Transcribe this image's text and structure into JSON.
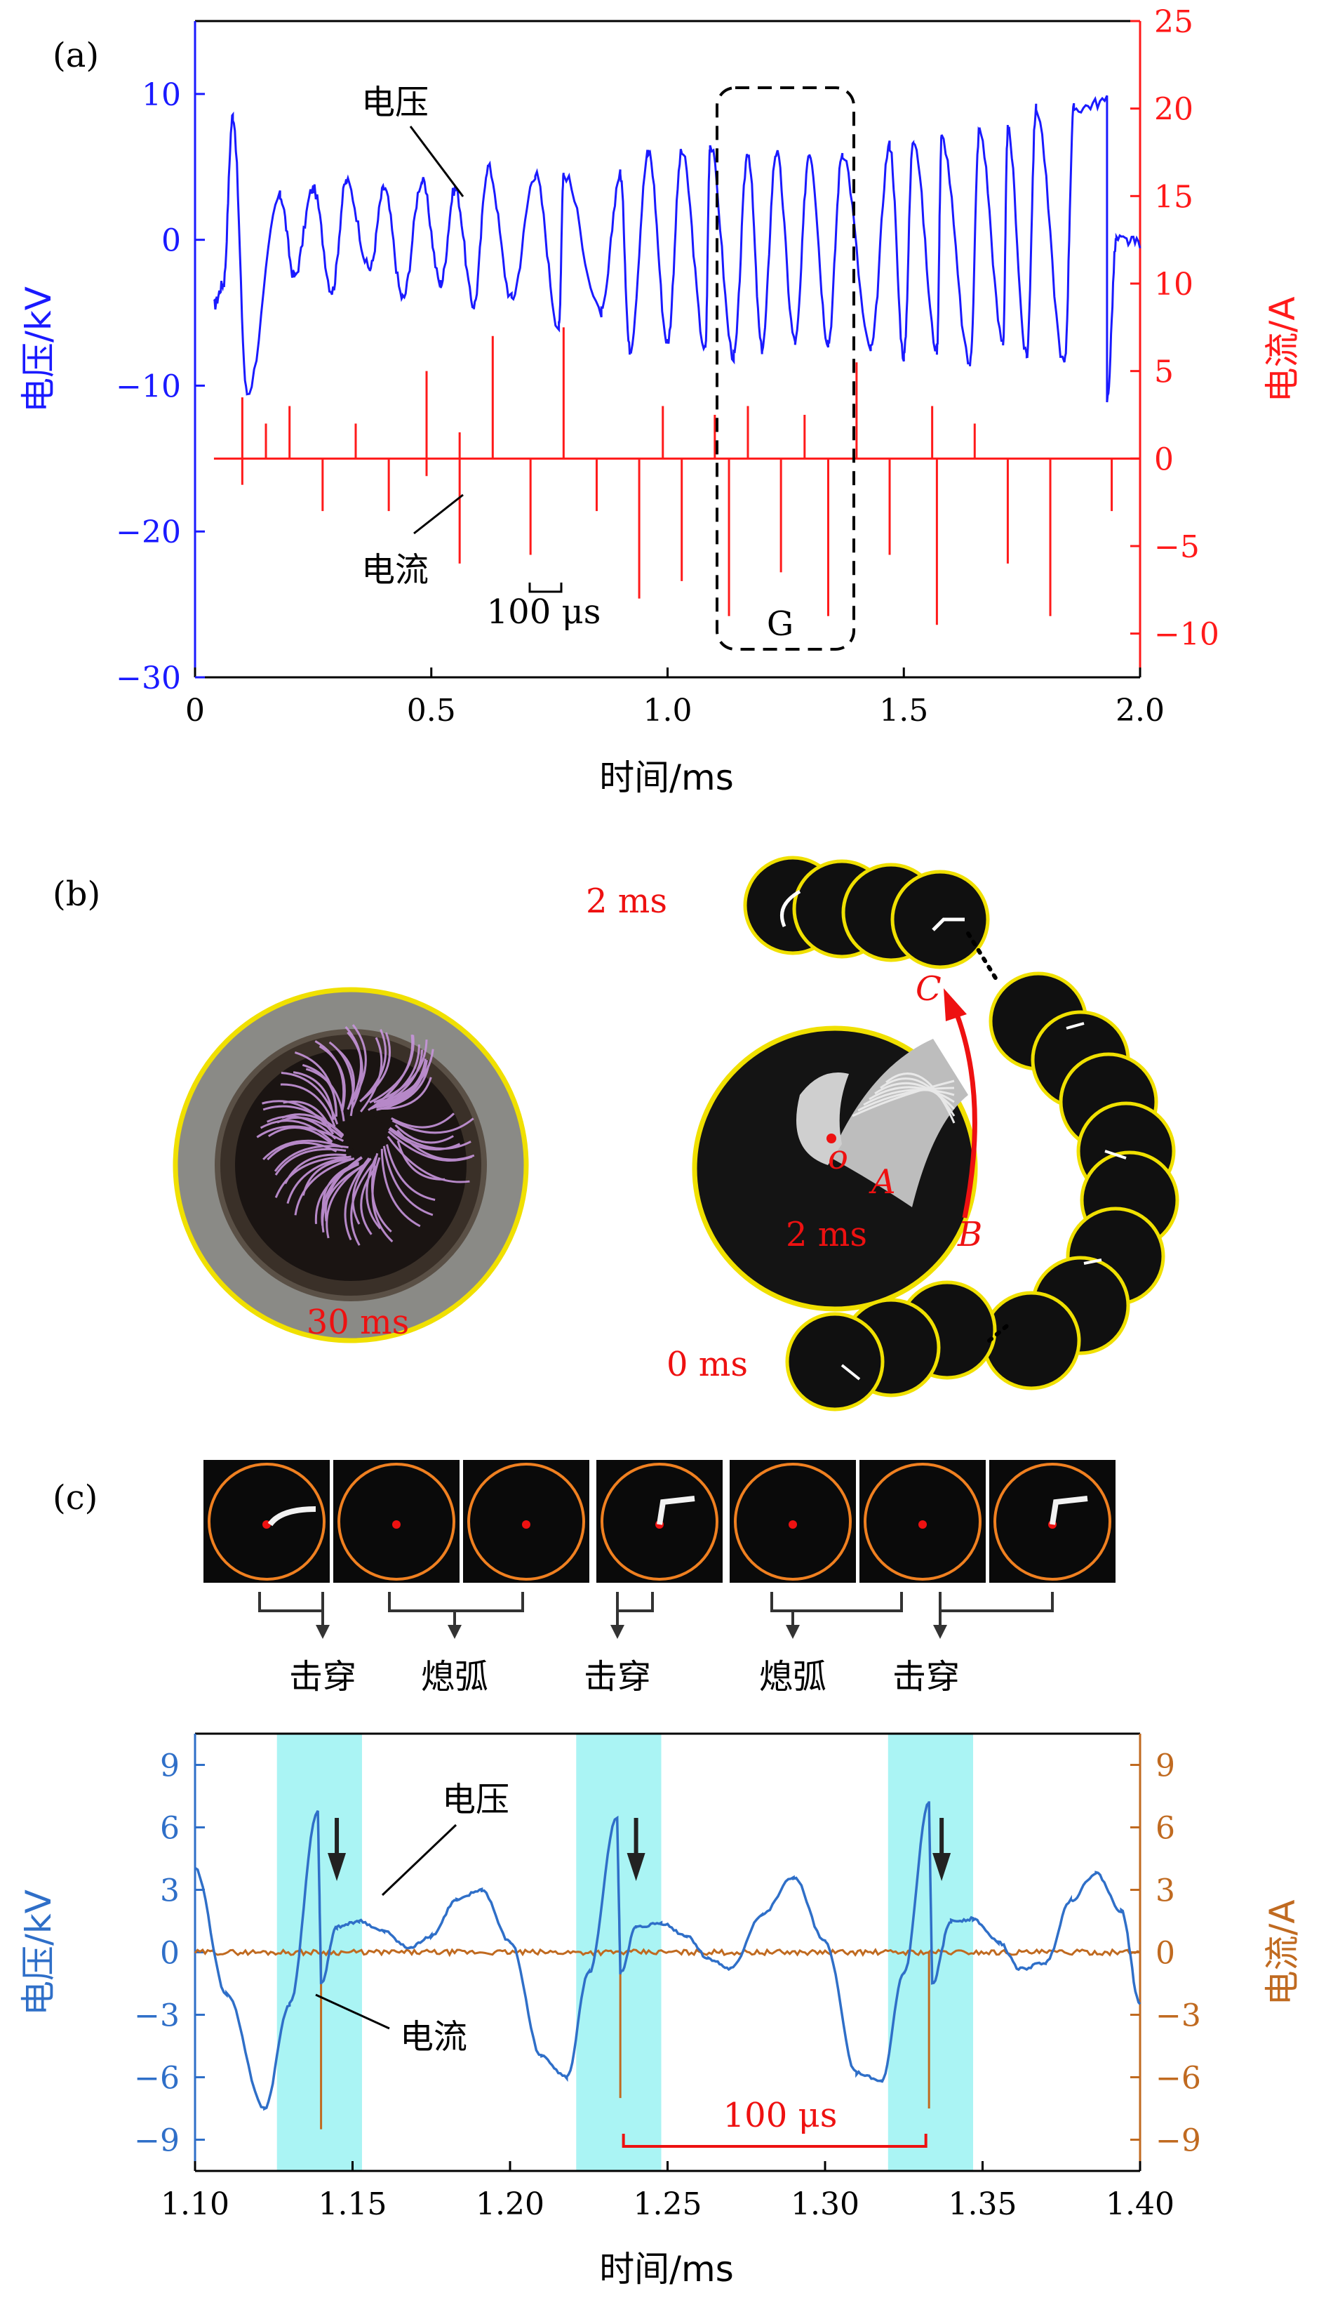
{
  "panels": {
    "a": {
      "label": "(a)"
    },
    "b": {
      "label": "(b)"
    },
    "c": {
      "label": "(c)"
    }
  },
  "panel_a": {
    "annotations": {
      "voltage": "电压",
      "current": "电流",
      "scale": "100 μs",
      "group": "G"
    },
    "colors": {
      "voltage": "#1a1aff",
      "current": "#ff1a1a"
    }
  },
  "panel_b": {
    "photo_time": "30 ms",
    "center_time": "2 ms",
    "seq_start": "0 ms",
    "seq_end": "2 ms",
    "point_o": "o",
    "point_a": "A",
    "point_b": "B",
    "point_c": "C",
    "colors": {
      "ring": "#f0e000",
      "label": "#ee1111",
      "discharge": "#c08ad8"
    }
  },
  "panel_c": {
    "events": [
      "击穿",
      "熄弧",
      "击穿",
      "熄弧",
      "击穿"
    ],
    "annotations": {
      "voltage": "电压",
      "current": "电流",
      "interval": "100 μs"
    },
    "colors": {
      "voltage": "#2f6fc8",
      "current": "#c06a20",
      "highlight": "#aaf4f4",
      "ring": "#f08020"
    }
  },
  "chart_data": [
    {
      "type": "line",
      "panel": "a",
      "xlabel": "时间/ms",
      "ylabel": "电压/kV",
      "y2label": "电流/A",
      "xlim": [
        0,
        2.0
      ],
      "ylim": [
        -30,
        15
      ],
      "y2lim": [
        -12.5,
        25
      ],
      "xticks": [
        "0",
        "0.5",
        "1.0",
        "1.5",
        "2.0"
      ],
      "xtick_values": [
        0,
        0.5,
        1.0,
        1.5,
        2.0
      ],
      "yticks": [
        "10",
        "0",
        "−10",
        "−20",
        "−30"
      ],
      "ytick_values": [
        10,
        0,
        -10,
        -20,
        -30
      ],
      "y2ticks": [
        "25",
        "20",
        "15",
        "10",
        "5",
        "0",
        "−5",
        "−10"
      ],
      "y2tick_values": [
        25,
        20,
        15,
        10,
        5,
        0,
        -5,
        -10
      ],
      "voltage_peaks_kV": [
        [
          0.08,
          8.5
        ],
        [
          0.18,
          3.0
        ],
        [
          0.25,
          3.5
        ],
        [
          0.32,
          4.0
        ],
        [
          0.4,
          3.5
        ],
        [
          0.48,
          4.0
        ],
        [
          0.55,
          3.5
        ],
        [
          0.62,
          5.0
        ],
        [
          0.72,
          4.5
        ],
        [
          0.78,
          4.5
        ],
        [
          0.9,
          4.5
        ],
        [
          0.96,
          6.0
        ],
        [
          1.03,
          6.0
        ],
        [
          1.09,
          6.5
        ],
        [
          1.17,
          6.0
        ],
        [
          1.23,
          6.0
        ],
        [
          1.3,
          6.0
        ],
        [
          1.37,
          6.0
        ],
        [
          1.47,
          6.5
        ],
        [
          1.52,
          7.0
        ],
        [
          1.58,
          7.0
        ],
        [
          1.66,
          7.5
        ],
        [
          1.72,
          7.5
        ],
        [
          1.78,
          9.0
        ],
        [
          1.86,
          9.0
        ],
        [
          1.93,
          9.5
        ]
      ],
      "voltage_troughs_kV": [
        [
          0.11,
          -10.5
        ],
        [
          0.21,
          -2.5
        ],
        [
          0.29,
          -3.5
        ],
        [
          0.37,
          -2.0
        ],
        [
          0.44,
          -4.0
        ],
        [
          0.52,
          -3.0
        ],
        [
          0.59,
          -4.5
        ],
        [
          0.67,
          -4.0
        ],
        [
          0.77,
          -6.0
        ],
        [
          0.86,
          -5.0
        ],
        [
          0.92,
          -7.5
        ],
        [
          1.0,
          -7.0
        ],
        [
          1.08,
          -7.5
        ],
        [
          1.14,
          -8.0
        ],
        [
          1.2,
          -7.5
        ],
        [
          1.27,
          -7.0
        ],
        [
          1.34,
          -7.0
        ],
        [
          1.43,
          -7.5
        ],
        [
          1.5,
          -8.0
        ],
        [
          1.57,
          -7.5
        ],
        [
          1.64,
          -8.5
        ],
        [
          1.71,
          -7.0
        ],
        [
          1.76,
          -8.0
        ],
        [
          1.84,
          -8.5
        ],
        [
          1.93,
          -11.0
        ]
      ],
      "current_spikes_A": [
        [
          0.1,
          3.5
        ],
        [
          0.1,
          -1.5
        ],
        [
          0.15,
          2.0
        ],
        [
          0.2,
          3.0
        ],
        [
          0.27,
          -3.0
        ],
        [
          0.34,
          2.0
        ],
        [
          0.41,
          -3.0
        ],
        [
          0.49,
          5.0
        ],
        [
          0.49,
          -1.0
        ],
        [
          0.56,
          1.5
        ],
        [
          0.56,
          -6.0
        ],
        [
          0.63,
          7.0
        ],
        [
          0.71,
          -5.5
        ],
        [
          0.78,
          7.5
        ],
        [
          0.85,
          -3.0
        ],
        [
          0.94,
          -8.0
        ],
        [
          0.99,
          3.0
        ],
        [
          1.03,
          -7.0
        ],
        [
          1.1,
          2.5
        ],
        [
          1.13,
          -9.0
        ],
        [
          1.17,
          3.0
        ],
        [
          1.24,
          -6.5
        ],
        [
          1.29,
          2.5
        ],
        [
          1.34,
          -9.0
        ],
        [
          1.4,
          5.5
        ],
        [
          1.47,
          -5.5
        ],
        [
          1.56,
          3.0
        ],
        [
          1.57,
          -9.5
        ],
        [
          1.65,
          2.0
        ],
        [
          1.72,
          -6.0
        ],
        [
          1.81,
          -9.0
        ],
        [
          1.94,
          -3.0
        ]
      ]
    },
    {
      "type": "line",
      "panel": "c",
      "xlabel": "时间/ms",
      "ylabel": "电压/kV",
      "y2label": "电流/A",
      "xlim": [
        1.1,
        1.4
      ],
      "ylim": [
        -10.5,
        10.5
      ],
      "y2lim": [
        -10.5,
        10.5
      ],
      "xticks": [
        "1.10",
        "1.15",
        "1.20",
        "1.25",
        "1.30",
        "1.35",
        "1.40"
      ],
      "xtick_values": [
        1.1,
        1.15,
        1.2,
        1.25,
        1.3,
        1.35,
        1.4
      ],
      "yticks": [
        "9",
        "6",
        "3",
        "0",
        "−3",
        "−6",
        "−9"
      ],
      "ytick_values": [
        9,
        6,
        3,
        0,
        -3,
        -6,
        -9
      ],
      "highlight_ranges_ms": [
        [
          1.126,
          1.153
        ],
        [
          1.221,
          1.248
        ],
        [
          1.32,
          1.347
        ]
      ],
      "voltage_kV": {
        "x": [
          1.1,
          1.11,
          1.122,
          1.13,
          1.139,
          1.14,
          1.145,
          1.152,
          1.16,
          1.168,
          1.175,
          1.183,
          1.191,
          1.2,
          1.21,
          1.218,
          1.225,
          1.234,
          1.235,
          1.24,
          1.248,
          1.256,
          1.263,
          1.27,
          1.28,
          1.29,
          1.3,
          1.31,
          1.318,
          1.325,
          1.333,
          1.334,
          1.34,
          1.347,
          1.355,
          1.362,
          1.37,
          1.378,
          1.386,
          1.394,
          1.4
        ],
        "y": [
          4.0,
          -2.0,
          -7.5,
          -2.5,
          6.8,
          -1.5,
          1.2,
          1.5,
          1.0,
          0.2,
          0.8,
          2.5,
          3.0,
          0.5,
          -5.0,
          -6.0,
          -1.0,
          6.5,
          -1.0,
          1.2,
          1.4,
          0.8,
          -0.3,
          -0.8,
          1.8,
          3.6,
          0.5,
          -5.8,
          -6.2,
          -1.0,
          7.2,
          -1.5,
          1.5,
          1.6,
          0.5,
          -0.8,
          -0.5,
          2.5,
          3.8,
          2.0,
          -2.5
        ]
      },
      "current_spikes_A": [
        [
          1.14,
          -8.5
        ],
        [
          1.235,
          -7.0
        ],
        [
          1.333,
          -7.5
        ]
      ],
      "arrows_ms": [
        1.145,
        1.24,
        1.337
      ],
      "interval_ms": [
        1.236,
        1.332
      ]
    }
  ]
}
